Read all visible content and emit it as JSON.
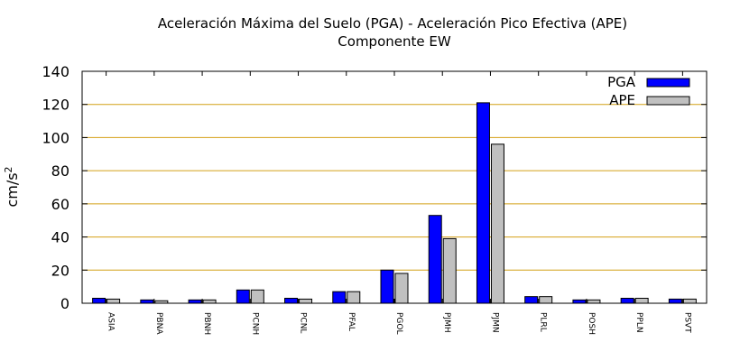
{
  "chart_data": {
    "type": "bar",
    "title": "Aceleración Máxima del Suelo (PGA) -  Aceleración Pico Efectiva (APE)",
    "subtitle": "Componente EW",
    "ylabel_base": "cm/s",
    "ylabel_exp": "2",
    "xlabel": "",
    "ylim": [
      0,
      140
    ],
    "yticks": [
      0,
      20,
      40,
      60,
      80,
      100,
      120,
      140
    ],
    "grid": true,
    "legend_position": "top-right",
    "categories": [
      "ASIA",
      "PBNA",
      "PBNH",
      "PCNH",
      "PCNL",
      "PFAL",
      "PGOL",
      "PJMH",
      "PJMN",
      "PLRL",
      "POSH",
      "PPLN",
      "PSVT"
    ],
    "series": [
      {
        "name": "PGA",
        "color": "#0000ff",
        "values": [
          3,
          2,
          2,
          8,
          3,
          7,
          20,
          53,
          121,
          4,
          2,
          3,
          2.5
        ]
      },
      {
        "name": "APE",
        "color": "#c0c0c0",
        "values": [
          2.5,
          1.5,
          2,
          8,
          2.5,
          7,
          18,
          39,
          96,
          4,
          2,
          3,
          2.5
        ]
      }
    ],
    "grid_color": "#d4a017"
  }
}
